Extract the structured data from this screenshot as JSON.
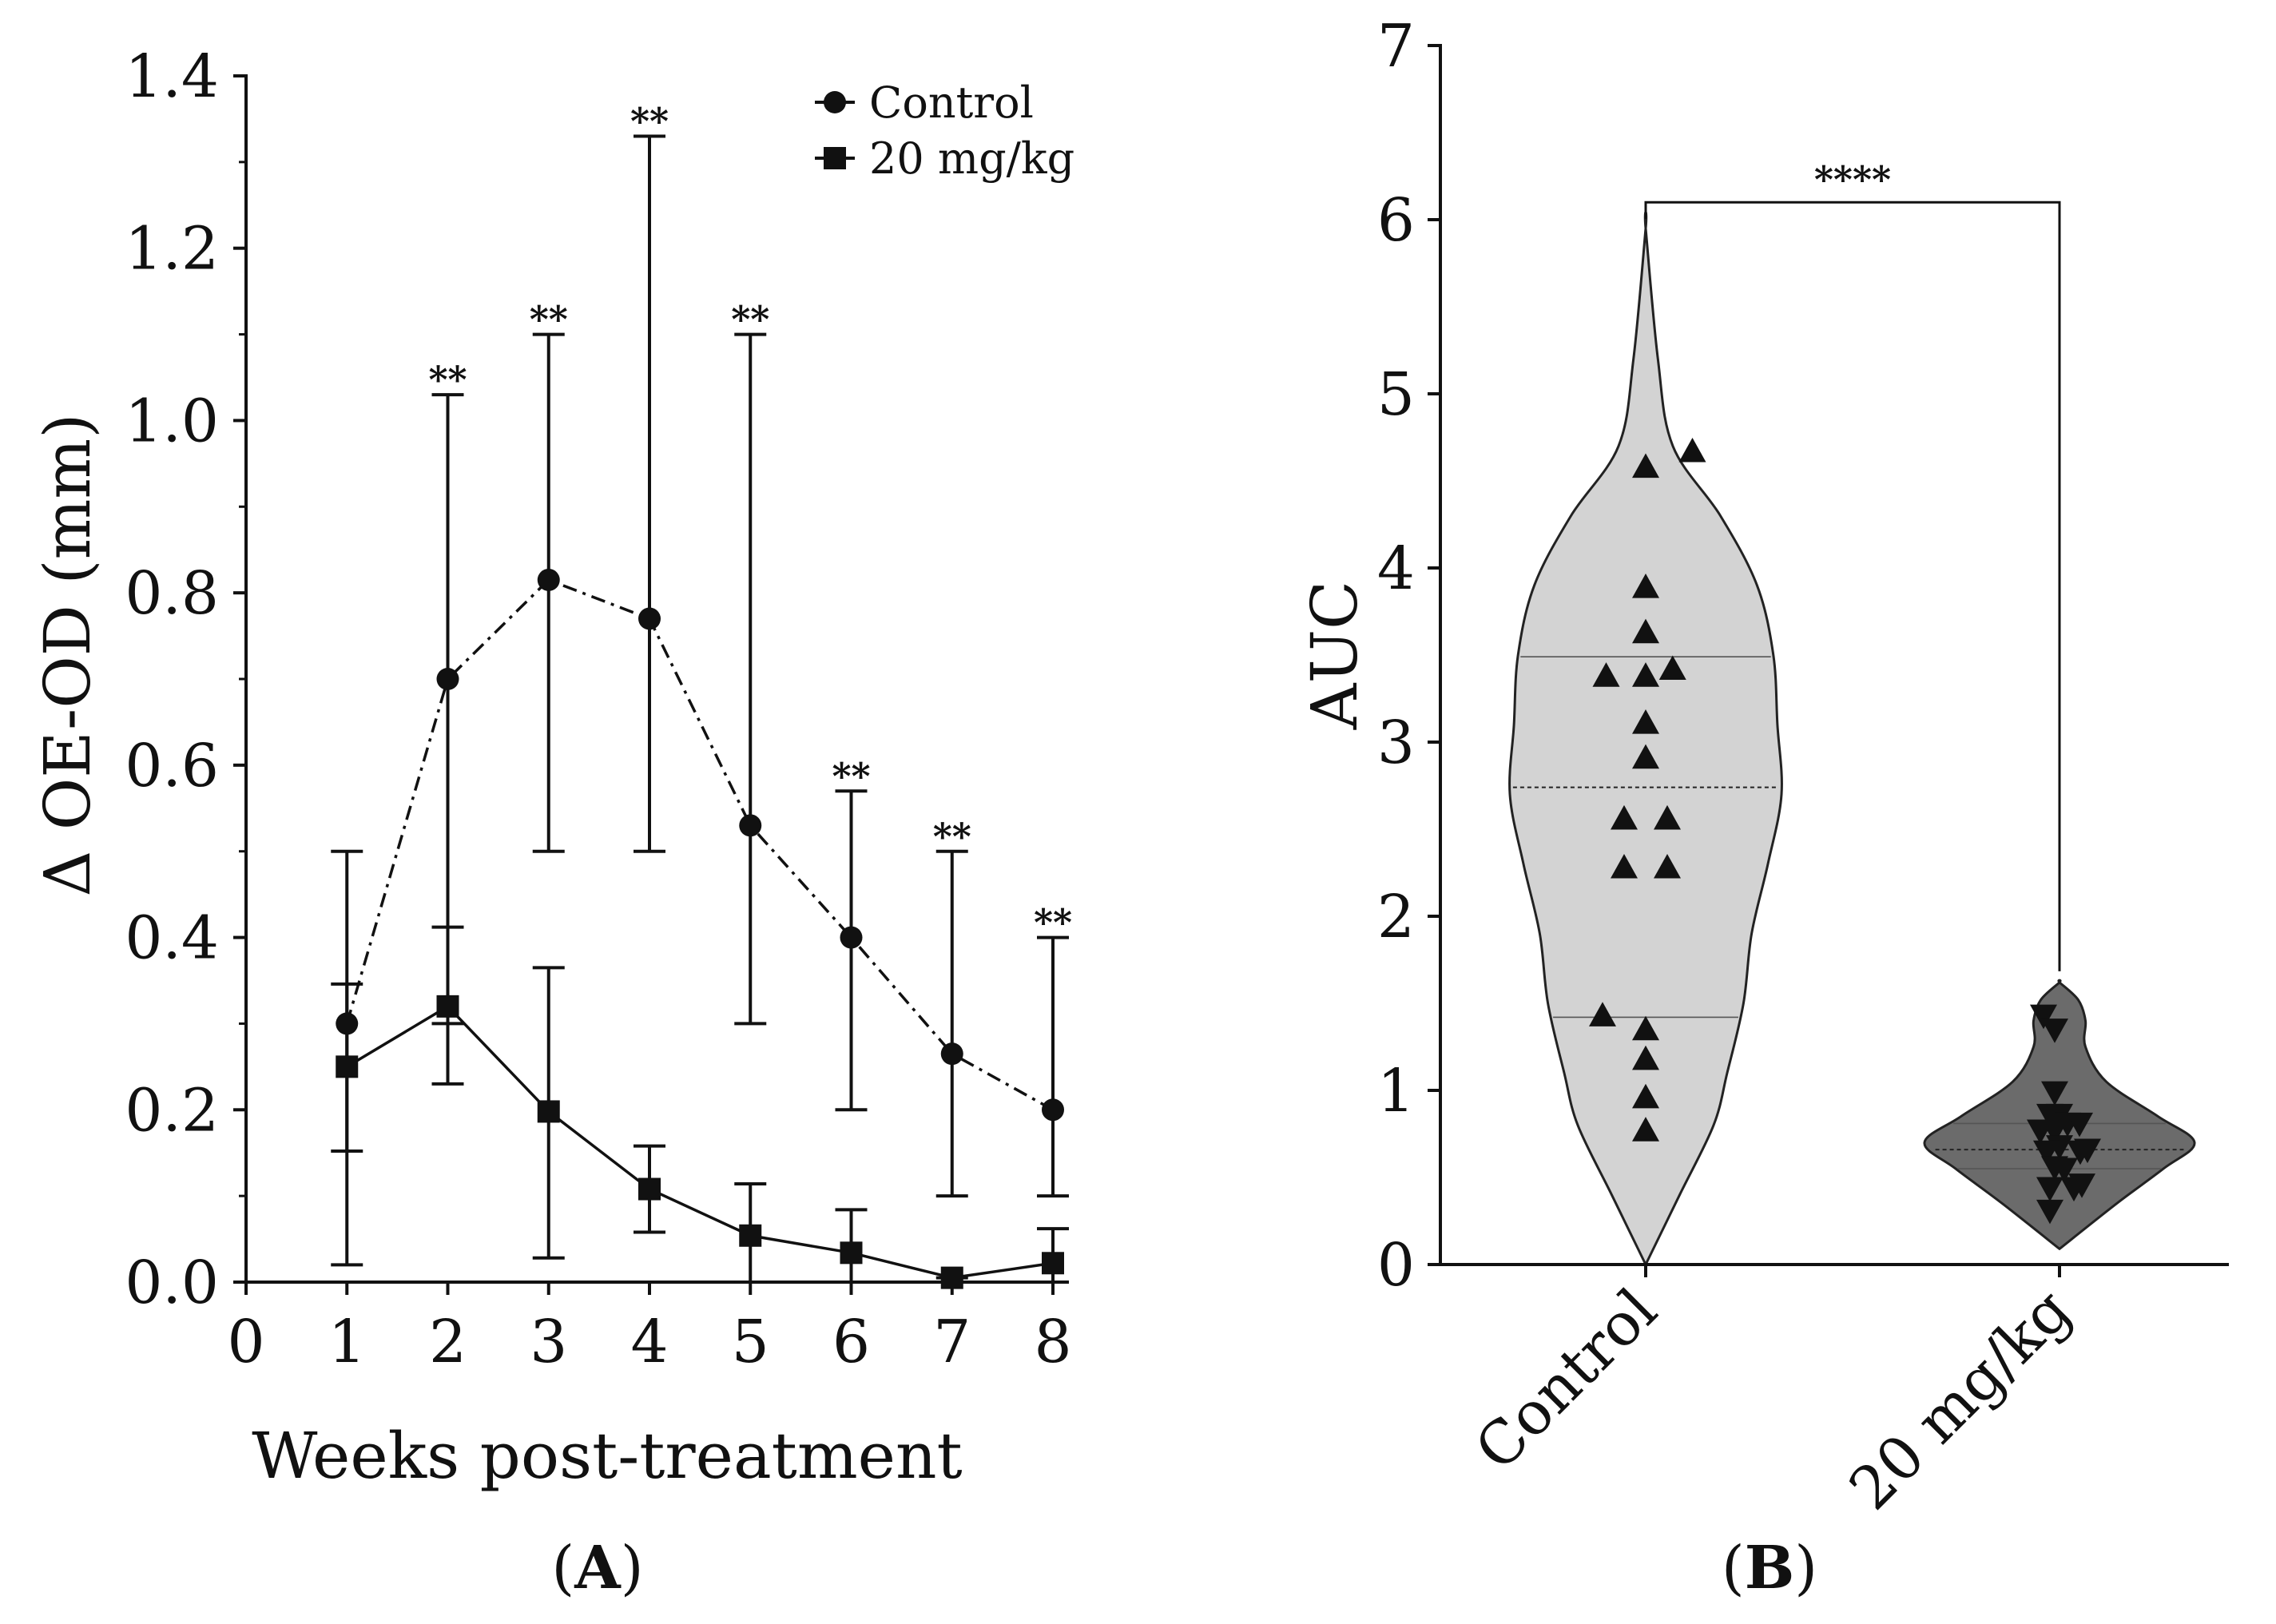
{
  "chart_data": [
    {
      "panel": "A",
      "panel_label": "A",
      "type": "line",
      "xlabel": "Weeks post-treatment",
      "ylabel": "Δ OE-OD (mm)",
      "xlim": [
        0,
        8
      ],
      "ylim": [
        0,
        1.4
      ],
      "xticks": [
        "0",
        "1",
        "2",
        "3",
        "4",
        "5",
        "6",
        "7",
        "8"
      ],
      "yticks": [
        "0.0",
        "0.2",
        "0.4",
        "0.6",
        "0.8",
        "1.0",
        "1.2",
        "1.4"
      ],
      "grid": false,
      "legend_position": "top-right",
      "series": [
        {
          "name": "Control",
          "marker": "circle",
          "line_style": "dash-dot",
          "x": [
            1,
            2,
            3,
            4,
            5,
            6,
            7,
            8
          ],
          "y": [
            0.3,
            0.7,
            0.815,
            0.77,
            0.53,
            0.4,
            0.265,
            0.2
          ],
          "err_low": [
            0.02,
            0.3,
            0.5,
            0.5,
            0.3,
            0.2,
            0.1,
            0.1
          ],
          "err_high": [
            0.5,
            1.03,
            1.1,
            1.33,
            1.1,
            0.57,
            0.5,
            0.4
          ]
        },
        {
          "name": "20 mg/kg",
          "marker": "square",
          "line_style": "solid",
          "x": [
            1,
            2,
            3,
            4,
            5,
            6,
            7,
            8
          ],
          "y": [
            0.25,
            0.32,
            0.198,
            0.108,
            0.054,
            0.034,
            0.005,
            0.022
          ],
          "err_low": [
            0.152,
            0.23,
            0.028,
            0.058,
            0.0,
            0.0,
            0.0,
            0.0
          ],
          "err_high": [
            0.346,
            0.412,
            0.365,
            0.158,
            0.114,
            0.084,
            0.005,
            0.062
          ]
        }
      ],
      "annotations": [
        {
          "x": 2,
          "text": "**",
          "y": 1.06
        },
        {
          "x": 3,
          "text": "**",
          "y": 1.13
        },
        {
          "x": 4,
          "text": "**",
          "y": 1.36
        },
        {
          "x": 5,
          "text": "**",
          "y": 1.13
        },
        {
          "x": 6,
          "text": "**",
          "y": 0.6
        },
        {
          "x": 7,
          "text": "**",
          "y": 0.53
        },
        {
          "x": 8,
          "text": "**",
          "y": 0.43
        }
      ]
    },
    {
      "panel": "B",
      "panel_label": "B",
      "type": "violin",
      "xlabel": "",
      "ylabel": "AUC",
      "ylim": [
        0,
        7
      ],
      "yticks": [
        "0",
        "1",
        "2",
        "3",
        "4",
        "5",
        "6",
        "7"
      ],
      "categories": [
        "Control",
        "20 mg/kg"
      ],
      "grid": false,
      "significance": {
        "text": "****",
        "y": 6.1
      },
      "groups": [
        {
          "name": "Control",
          "color": "#d3d3d3",
          "marker": "triangle-up",
          "median": 2.74,
          "quartiles": [
            1.42,
            3.49
          ],
          "range": [
            0.0,
            5.95
          ],
          "points": [
            {
              "offset": 0.0,
              "y": 4.58
            },
            {
              "offset": 0.26,
              "y": 4.67
            },
            {
              "offset": 0.0,
              "y": 3.89
            },
            {
              "offset": 0.0,
              "y": 3.63
            },
            {
              "offset": -0.22,
              "y": 3.38
            },
            {
              "offset": 0.0,
              "y": 3.38
            },
            {
              "offset": 0.15,
              "y": 3.42
            },
            {
              "offset": 0.0,
              "y": 3.11
            },
            {
              "offset": 0.0,
              "y": 2.91
            },
            {
              "offset": -0.12,
              "y": 2.56
            },
            {
              "offset": 0.12,
              "y": 2.56
            },
            {
              "offset": -0.12,
              "y": 2.28
            },
            {
              "offset": 0.12,
              "y": 2.28
            },
            {
              "offset": -0.24,
              "y": 1.43
            },
            {
              "offset": 0.0,
              "y": 1.35
            },
            {
              "offset": 0.0,
              "y": 1.18
            },
            {
              "offset": 0.0,
              "y": 0.96
            },
            {
              "offset": 0.0,
              "y": 0.77
            }
          ]
        },
        {
          "name": "20 mg/kg",
          "color": "#6b6b6b",
          "marker": "triangle-down",
          "median": 0.66,
          "quartiles": [
            0.55,
            0.81
          ],
          "range": [
            0.09,
            1.62
          ],
          "points": [
            {
              "offset": 0.1,
              "y": 1.43
            },
            {
              "offset": 0.24,
              "y": 1.35
            },
            {
              "offset": 0.24,
              "y": 0.99
            },
            {
              "offset": 0.18,
              "y": 0.86
            },
            {
              "offset": 0.3,
              "y": 0.86
            },
            {
              "offset": 0.4,
              "y": 0.81
            },
            {
              "offset": 0.55,
              "y": 0.81
            },
            {
              "offset": 0.06,
              "y": 0.77
            },
            {
              "offset": 0.24,
              "y": 0.77
            },
            {
              "offset": 0.3,
              "y": 0.68
            },
            {
              "offset": 0.14,
              "y": 0.65
            },
            {
              "offset": 0.56,
              "y": 0.65
            },
            {
              "offset": 0.65,
              "y": 0.66
            },
            {
              "offset": 0.24,
              "y": 0.56
            },
            {
              "offset": 0.36,
              "y": 0.55
            },
            {
              "offset": 0.18,
              "y": 0.44
            },
            {
              "offset": 0.48,
              "y": 0.44
            },
            {
              "offset": 0.58,
              "y": 0.46
            },
            {
              "offset": 0.18,
              "y": 0.31
            }
          ]
        }
      ]
    }
  ]
}
